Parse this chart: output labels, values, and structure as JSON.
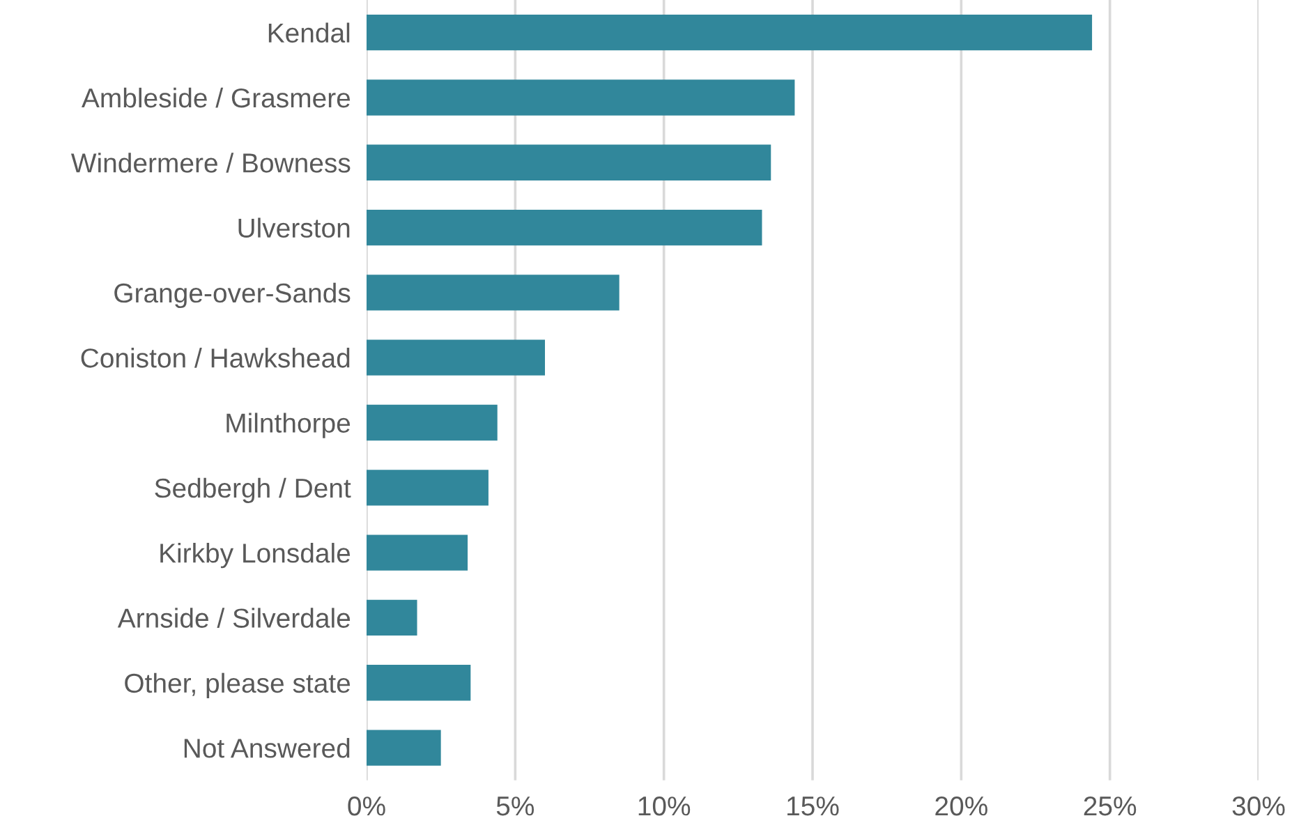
{
  "chart_data": {
    "type": "bar",
    "orientation": "horizontal",
    "categories": [
      "Kendal",
      "Ambleside / Grasmere",
      "Windermere / Bowness",
      "Ulverston",
      "Grange-over-Sands",
      "Coniston / Hawkshead",
      "Milnthorpe",
      "Sedbergh / Dent",
      "Kirkby Lonsdale",
      "Arnside / Silverdale",
      "Other, please state",
      "Not Answered"
    ],
    "values": [
      24.4,
      14.4,
      13.6,
      13.3,
      8.5,
      6.0,
      4.4,
      4.1,
      3.4,
      1.7,
      3.5,
      2.5
    ],
    "color": "#31879b",
    "xlim": [
      0,
      30
    ],
    "xticks": [
      {
        "value": 0,
        "label": "0%"
      },
      {
        "value": 5,
        "label": "5%"
      },
      {
        "value": 10,
        "label": "10%"
      },
      {
        "value": 15,
        "label": "15%"
      },
      {
        "value": 20,
        "label": "20%"
      },
      {
        "value": 25,
        "label": "25%"
      },
      {
        "value": 30,
        "label": "30%"
      }
    ],
    "grid": "x"
  }
}
